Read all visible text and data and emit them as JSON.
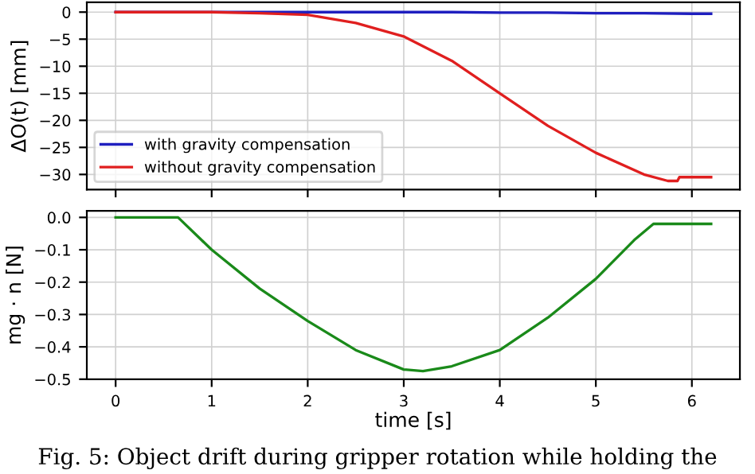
{
  "chart_data": [
    {
      "type": "line",
      "ylabel": "ΔO(t) [mm]",
      "xlim": [
        -0.3,
        6.5
      ],
      "xticks": [
        0,
        1,
        2,
        3,
        4,
        5,
        6
      ],
      "ylim": [
        -32.8,
        1.8
      ],
      "yticks": [
        {
          "value": 0,
          "label": "0"
        },
        {
          "value": -5,
          "label": "−5"
        },
        {
          "value": -10,
          "label": "−10"
        },
        {
          "value": -15,
          "label": "−15"
        },
        {
          "value": -20,
          "label": "−20"
        },
        {
          "value": -25,
          "label": "−25"
        },
        {
          "value": -30,
          "label": "−30"
        }
      ],
      "grid": true,
      "legend": "bottom left",
      "tick_labels": "y",
      "series": [
        {
          "name": "with gravity compensation",
          "color": "#1f1fbf",
          "x": [
            0,
            1,
            2,
            2.5,
            3,
            3.5,
            4,
            4.5,
            5,
            5.5,
            6,
            6.2
          ],
          "values": [
            0,
            0,
            0,
            0,
            0,
            0,
            -0.1,
            -0.1,
            -0.2,
            -0.2,
            -0.3,
            -0.3
          ]
        },
        {
          "name": "without gravity compensation",
          "color": "#e01f1f",
          "x": [
            0,
            1,
            1.5,
            2,
            2.5,
            3,
            3.5,
            4,
            4.5,
            5,
            5.5,
            5.75,
            5.85,
            5.87,
            6.2
          ],
          "values": [
            0,
            0,
            -0.2,
            -0.5,
            -2,
            -4.5,
            -9,
            -15,
            -21,
            -26,
            -30,
            -31.2,
            -31.2,
            -30.5,
            -30.5
          ]
        }
      ]
    },
    {
      "type": "line",
      "xlabel": "time [s]",
      "ylabel": "mg · n [N]",
      "xlim": [
        -0.3,
        6.5
      ],
      "xticks": [
        0,
        1,
        2,
        3,
        4,
        5,
        6
      ],
      "ylim": [
        -0.5,
        0.02
      ],
      "yticks": [
        {
          "value": 0,
          "label": "0.0"
        },
        {
          "value": -0.1,
          "label": "−0.1"
        },
        {
          "value": -0.2,
          "label": "−0.2"
        },
        {
          "value": -0.3,
          "label": "−0.3"
        },
        {
          "value": -0.4,
          "label": "−0.4"
        },
        {
          "value": -0.5,
          "label": "−0.5"
        }
      ],
      "grid": true,
      "series": [
        {
          "color": "#1a8a1a",
          "x": [
            0,
            0.65,
            1,
            1.5,
            2,
            2.5,
            3,
            3.2,
            3.5,
            4,
            4.5,
            5,
            5.4,
            5.6,
            6.2
          ],
          "values": [
            0,
            0,
            -0.1,
            -0.22,
            -0.32,
            -0.41,
            -0.47,
            -0.475,
            -0.46,
            -0.41,
            -0.31,
            -0.19,
            -0.07,
            -0.02,
            -0.02
          ]
        }
      ],
      "annotations": [
        "Fig. 5: Object drift during gripper rotation while holding the"
      ]
    }
  ]
}
